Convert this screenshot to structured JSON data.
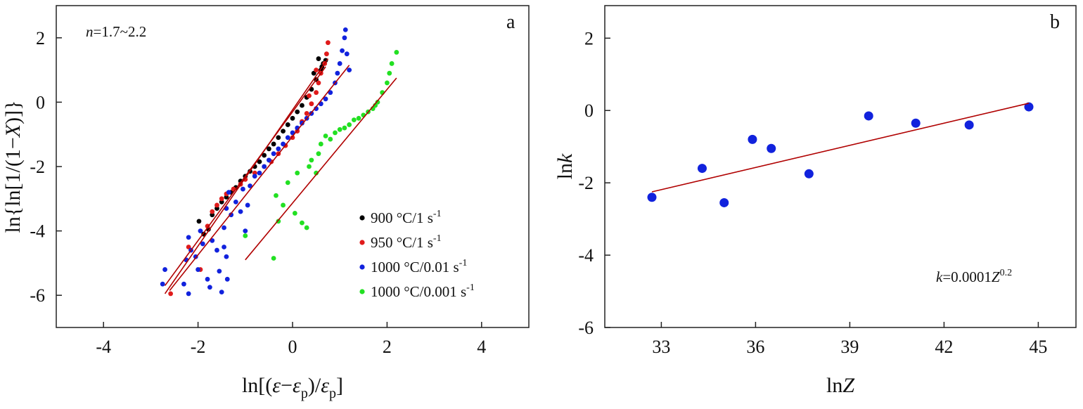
{
  "chart_data": [
    {
      "type": "scatter",
      "panel_label": "a",
      "annotation": {
        "n": "n",
        "rest": "=1.7~2.2"
      },
      "xlabel_parts": [
        "ln[(",
        "ε",
        "−",
        "ε",
        "p",
        ")/",
        "ε",
        "p",
        "]"
      ],
      "ylabel_parts": [
        "ln{ln[1/(1−",
        "X",
        ")]}"
      ],
      "xlim": [
        -5,
        5
      ],
      "ylim": [
        -7,
        3
      ],
      "x_ticks": [
        "-4",
        "-2",
        "0",
        "2",
        "4"
      ],
      "x_tick_values": [
        -4,
        -2,
        0,
        2,
        4
      ],
      "y_ticks": [
        "2",
        "0",
        "-2",
        "-4",
        "-6"
      ],
      "y_tick_values": [
        2,
        0,
        -2,
        -4,
        -6
      ],
      "series": [
        {
          "name": "900 °C/1 s",
          "legend_text": "900 °C/1 s",
          "legend_sup": "-1",
          "color": "#000000",
          "points": [
            [
              -1.98,
              -3.7
            ],
            [
              -1.88,
              -4.1
            ],
            [
              -1.78,
              -3.95
            ],
            [
              -1.7,
              -3.5
            ],
            [
              -1.6,
              -3.3
            ],
            [
              -1.5,
              -3.1
            ],
            [
              -1.4,
              -2.95
            ],
            [
              -1.3,
              -2.8
            ],
            [
              -1.2,
              -2.65
            ],
            [
              -1.1,
              -2.45
            ],
            [
              -1.0,
              -2.3
            ],
            [
              -0.9,
              -2.15
            ],
            [
              -0.8,
              -2.0
            ],
            [
              -0.7,
              -1.85
            ],
            [
              -0.6,
              -1.65
            ],
            [
              -0.5,
              -1.45
            ],
            [
              -0.4,
              -1.3
            ],
            [
              -0.3,
              -1.1
            ],
            [
              -0.2,
              -0.9
            ],
            [
              -0.1,
              -0.7
            ],
            [
              0.0,
              -0.5
            ],
            [
              0.1,
              -0.3
            ],
            [
              0.2,
              -0.1
            ],
            [
              0.3,
              0.15
            ],
            [
              0.4,
              0.4
            ],
            [
              0.5,
              0.7
            ],
            [
              0.6,
              1.0
            ],
            [
              0.65,
              1.2
            ],
            [
              0.7,
              1.3
            ],
            [
              0.55,
              1.35
            ],
            [
              0.62,
              1.1
            ],
            [
              0.45,
              0.9
            ]
          ],
          "fit": [
            [
              -2.7,
              -5.95
            ],
            [
              0.75,
              1.35
            ]
          ]
        },
        {
          "name": "950 °C/1 s",
          "legend_text": "950 °C/1 s",
          "legend_sup": "-1",
          "color": "#e01b1b",
          "points": [
            [
              -2.58,
              -5.95
            ],
            [
              -2.2,
              -4.5
            ],
            [
              -1.95,
              -5.2
            ],
            [
              -1.8,
              -3.85
            ],
            [
              -1.7,
              -3.4
            ],
            [
              -1.6,
              -3.2
            ],
            [
              -1.5,
              -3.0
            ],
            [
              -1.4,
              -2.85
            ],
            [
              -1.25,
              -2.7
            ],
            [
              -1.1,
              -2.55
            ],
            [
              -1.0,
              -2.4
            ],
            [
              -0.8,
              -2.2
            ],
            [
              -0.6,
              -2.0
            ],
            [
              -0.45,
              -1.85
            ],
            [
              -0.3,
              -1.6
            ],
            [
              -0.15,
              -1.35
            ],
            [
              0.0,
              -1.1
            ],
            [
              0.1,
              -0.9
            ],
            [
              0.2,
              -0.6
            ],
            [
              0.3,
              -0.35
            ],
            [
              0.4,
              -0.05
            ],
            [
              0.5,
              0.3
            ],
            [
              0.55,
              0.6
            ],
            [
              0.6,
              0.9
            ],
            [
              0.68,
              1.2
            ],
            [
              0.72,
              1.5
            ],
            [
              0.75,
              1.85
            ],
            [
              0.5,
              1.0
            ],
            [
              0.35,
              0.2
            ]
          ],
          "fit": [
            [
              -2.7,
              -5.7
            ],
            [
              0.7,
              1.1
            ]
          ]
        },
        {
          "name": "1000 °C/0.01 s",
          "legend_text": "1000 °C/0.01 s",
          "legend_sup": "-1",
          "color": "#1122dd",
          "points": [
            [
              -2.75,
              -5.65
            ],
            [
              -2.7,
              -5.2
            ],
            [
              -2.3,
              -5.65
            ],
            [
              -2.2,
              -5.95
            ],
            [
              -2.25,
              -4.9
            ],
            [
              -2.2,
              -4.2
            ],
            [
              -2.15,
              -4.6
            ],
            [
              -2.05,
              -4.8
            ],
            [
              -2.0,
              -5.2
            ],
            [
              -1.95,
              -4.0
            ],
            [
              -1.9,
              -4.4
            ],
            [
              -1.8,
              -5.5
            ],
            [
              -1.75,
              -5.75
            ],
            [
              -1.7,
              -4.3
            ],
            [
              -1.6,
              -4.6
            ],
            [
              -1.55,
              -5.25
            ],
            [
              -1.5,
              -5.9
            ],
            [
              -1.45,
              -4.5
            ],
            [
              -1.4,
              -4.8
            ],
            [
              -1.38,
              -5.5
            ],
            [
              -1.45,
              -3.9
            ],
            [
              -1.4,
              -3.3
            ],
            [
              -1.35,
              -2.8
            ],
            [
              -1.3,
              -3.5
            ],
            [
              -1.2,
              -3.1
            ],
            [
              -1.1,
              -3.4
            ],
            [
              -1.05,
              -2.7
            ],
            [
              -1.0,
              -4.0
            ],
            [
              -0.95,
              -3.2
            ],
            [
              -0.9,
              -2.6
            ],
            [
              -0.8,
              -2.3
            ],
            [
              -0.7,
              -2.2
            ],
            [
              -0.6,
              -2.0
            ],
            [
              -0.5,
              -1.8
            ],
            [
              -0.4,
              -1.6
            ],
            [
              -0.3,
              -1.45
            ],
            [
              -0.2,
              -1.3
            ],
            [
              -0.1,
              -1.1
            ],
            [
              0.0,
              -0.95
            ],
            [
              0.1,
              -0.8
            ],
            [
              0.2,
              -0.65
            ],
            [
              0.3,
              -0.5
            ],
            [
              0.4,
              -0.35
            ],
            [
              0.5,
              -0.2
            ],
            [
              0.6,
              -0.05
            ],
            [
              0.7,
              0.1
            ],
            [
              0.8,
              0.3
            ],
            [
              0.9,
              0.6
            ],
            [
              0.95,
              0.9
            ],
            [
              1.0,
              1.2
            ],
            [
              1.05,
              1.6
            ],
            [
              1.1,
              2.0
            ],
            [
              1.12,
              2.25
            ],
            [
              1.15,
              1.5
            ],
            [
              1.2,
              1.0
            ]
          ],
          "fit": [
            [
              -2.6,
              -5.85
            ],
            [
              1.2,
              1.15
            ]
          ]
        },
        {
          "name": "1000 °C/0.001 s",
          "legend_text": "1000 °C/0.001 s",
          "legend_sup": "-1",
          "color": "#22e022",
          "points": [
            [
              -1.0,
              -4.15
            ],
            [
              -0.4,
              -4.85
            ],
            [
              -0.35,
              -2.9
            ],
            [
              -0.3,
              -3.7
            ],
            [
              -0.2,
              -3.2
            ],
            [
              -0.1,
              -2.5
            ],
            [
              0.05,
              -3.45
            ],
            [
              0.1,
              -2.2
            ],
            [
              0.2,
              -3.75
            ],
            [
              0.3,
              -3.9
            ],
            [
              0.35,
              -2.0
            ],
            [
              0.4,
              -1.8
            ],
            [
              0.5,
              -2.2
            ],
            [
              0.55,
              -1.6
            ],
            [
              0.6,
              -1.3
            ],
            [
              0.7,
              -1.05
            ],
            [
              0.8,
              -1.15
            ],
            [
              0.9,
              -0.95
            ],
            [
              1.0,
              -0.85
            ],
            [
              1.1,
              -0.8
            ],
            [
              1.2,
              -0.7
            ],
            [
              1.3,
              -0.55
            ],
            [
              1.4,
              -0.5
            ],
            [
              1.5,
              -0.4
            ],
            [
              1.6,
              -0.3
            ],
            [
              1.7,
              -0.2
            ],
            [
              1.75,
              -0.1
            ],
            [
              1.8,
              0.0
            ],
            [
              1.9,
              0.3
            ],
            [
              2.0,
              0.6
            ],
            [
              2.05,
              0.9
            ],
            [
              2.1,
              1.2
            ],
            [
              2.2,
              1.55
            ]
          ],
          "fit": [
            [
              -1.0,
              -4.9
            ],
            [
              2.2,
              0.75
            ]
          ]
        }
      ]
    },
    {
      "type": "scatter",
      "panel_label": "b",
      "annotation": {
        "k": "k",
        "mid": "=0.0001",
        "z": "Z",
        "sup": "0.2"
      },
      "xlabel_parts": [
        "ln",
        "Z"
      ],
      "ylabel_parts": [
        "ln",
        "k"
      ],
      "xlim": [
        31.2,
        46.2
      ],
      "ylim": [
        -6,
        2.9
      ],
      "x_ticks": [
        "33",
        "36",
        "39",
        "42",
        "45"
      ],
      "x_tick_values": [
        33,
        36,
        39,
        42,
        45
      ],
      "y_ticks": [
        "2",
        "0",
        "-2",
        "-4",
        "-6"
      ],
      "y_tick_values": [
        2,
        0,
        -2,
        -4,
        -6
      ],
      "series": [
        {
          "color": "#1122dd",
          "points": [
            [
              32.7,
              -2.4
            ],
            [
              34.3,
              -1.6
            ],
            [
              35.0,
              -2.55
            ],
            [
              35.9,
              -0.8
            ],
            [
              36.5,
              -1.05
            ],
            [
              37.7,
              -1.75
            ],
            [
              39.6,
              -0.15
            ],
            [
              41.1,
              -0.35
            ],
            [
              42.8,
              -0.4
            ],
            [
              44.7,
              0.1
            ]
          ],
          "fit": [
            [
              32.7,
              -2.25
            ],
            [
              44.7,
              0.2
            ]
          ]
        }
      ]
    }
  ]
}
